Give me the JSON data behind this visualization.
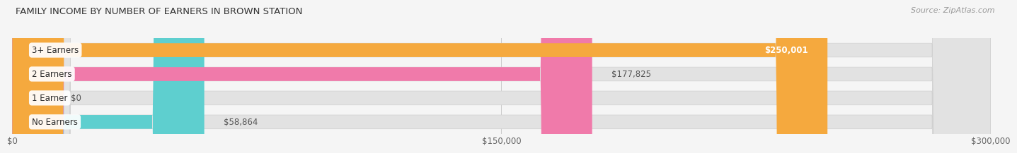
{
  "title": "FAMILY INCOME BY NUMBER OF EARNERS IN BROWN STATION",
  "source": "Source: ZipAtlas.com",
  "categories": [
    "No Earners",
    "1 Earner",
    "2 Earners",
    "3+ Earners"
  ],
  "values": [
    58864,
    0,
    177825,
    250001
  ],
  "labels": [
    "$58,864",
    "$0",
    "$177,825",
    "$250,001"
  ],
  "bar_colors": [
    "#5ecfcf",
    "#b3b3e8",
    "#f07aaa",
    "#f5a93e"
  ],
  "label_text_colors": [
    "#333333",
    "#333333",
    "#333333",
    "#333333"
  ],
  "value_label_inside": [
    false,
    false,
    false,
    true
  ],
  "max_value": 300000,
  "xtick_values": [
    0,
    150000,
    300000
  ],
  "xtick_labels": [
    "$0",
    "$150,000",
    "$300,000"
  ],
  "fig_bg_color": "#f5f5f5",
  "bar_bg_color": "#e2e2e2",
  "title_fontsize": 9.5,
  "label_fontsize": 8.5,
  "source_fontsize": 8
}
